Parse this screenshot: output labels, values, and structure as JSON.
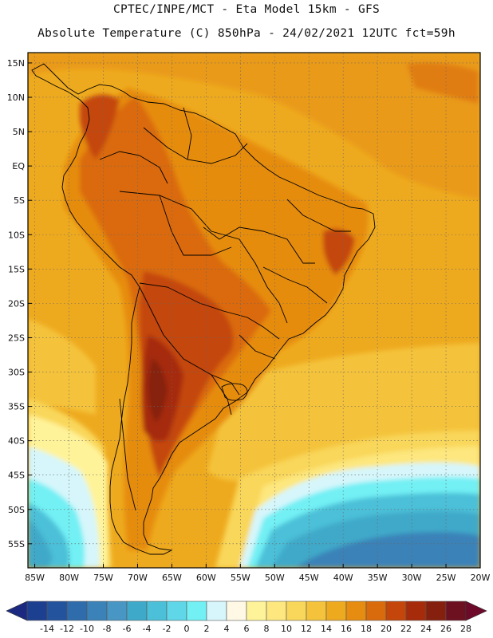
{
  "header": {
    "line1": "CPTEC/INPE/MCT -  Eta Model 15km - GFS",
    "line2": "Absolute Temperature (C) 850hPa - 24/02/2021 12UTC fct=59h"
  },
  "map": {
    "region": "South America",
    "lat_labels": [
      "15N",
      "10N",
      "5N",
      "EQ",
      "5S",
      "10S",
      "15S",
      "20S",
      "25S",
      "30S",
      "35S",
      "40S",
      "45S",
      "50S",
      "55S"
    ],
    "lat_values": [
      15,
      10,
      5,
      0,
      -5,
      -10,
      -15,
      -20,
      -25,
      -30,
      -35,
      -40,
      -45,
      -50,
      -55
    ],
    "lon_labels": [
      "85W",
      "80W",
      "75W",
      "70W",
      "65W",
      "60W",
      "55W",
      "50W",
      "45W",
      "40W",
      "35W",
      "30W",
      "25W",
      "20W"
    ],
    "lon_values": [
      -85,
      -80,
      -75,
      -70,
      -65,
      -60,
      -55,
      -50,
      -45,
      -40,
      -35,
      -30,
      -25,
      -20
    ],
    "lat_range": [
      -58.5,
      16.5
    ],
    "lon_range": [
      -86,
      -20
    ]
  },
  "colorbar": {
    "labels": [
      "-14",
      "-12",
      "-10",
      "-8",
      "-6",
      "-4",
      "-2",
      "0",
      "2",
      "4",
      "6",
      "8",
      "10",
      "12",
      "14",
      "16",
      "18",
      "20",
      "22",
      "24",
      "26",
      "28"
    ],
    "colors": [
      "#1d3f8f",
      "#24539e",
      "#2f6cac",
      "#3a82b8",
      "#4796c4",
      "#3fa9c9",
      "#4cc0d8",
      "#5fd7e8",
      "#72f0f4",
      "#d6f6fb",
      "#fff8e4",
      "#fff399",
      "#fde77e",
      "#f9d75a",
      "#f4c33b",
      "#eeaa1f",
      "#e68c10",
      "#da6b0c",
      "#c4460a",
      "#a62b0a",
      "#86200e",
      "#6d1020"
    ],
    "left_arrow_color": "#1b2a80",
    "right_arrow_color": "#6d0a2a"
  }
}
